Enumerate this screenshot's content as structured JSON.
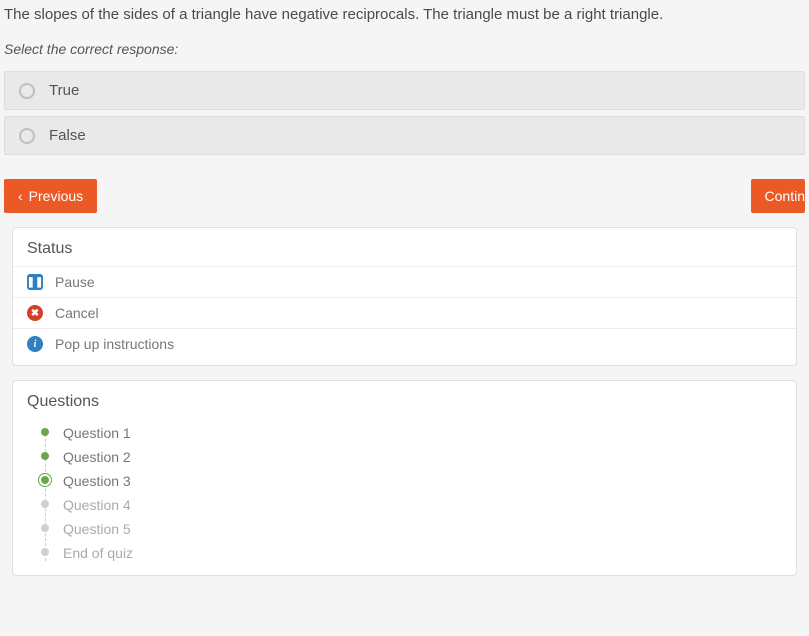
{
  "question": {
    "text": "The slopes of the sides of a triangle have negative reciprocals. The triangle must be a right triangle.",
    "instruction": "Select the correct response:"
  },
  "choices": [
    {
      "label": "True"
    },
    {
      "label": "False"
    }
  ],
  "nav": {
    "previous": "Previous",
    "continue": "Contin"
  },
  "status": {
    "title": "Status",
    "pause": "Pause",
    "cancel": "Cancel",
    "instructions": "Pop up instructions"
  },
  "questions": {
    "title": "Questions",
    "items": [
      {
        "label": "Question 1",
        "state": "done"
      },
      {
        "label": "Question 2",
        "state": "done"
      },
      {
        "label": "Question 3",
        "state": "current"
      },
      {
        "label": "Question 4",
        "state": "pending"
      },
      {
        "label": "Question 5",
        "state": "pending"
      },
      {
        "label": "End of quiz",
        "state": "pending"
      }
    ]
  },
  "colors": {
    "accent": "#eb5a26",
    "info": "#2f7fc2",
    "danger": "#d43f2a",
    "success": "#6aa84f"
  }
}
